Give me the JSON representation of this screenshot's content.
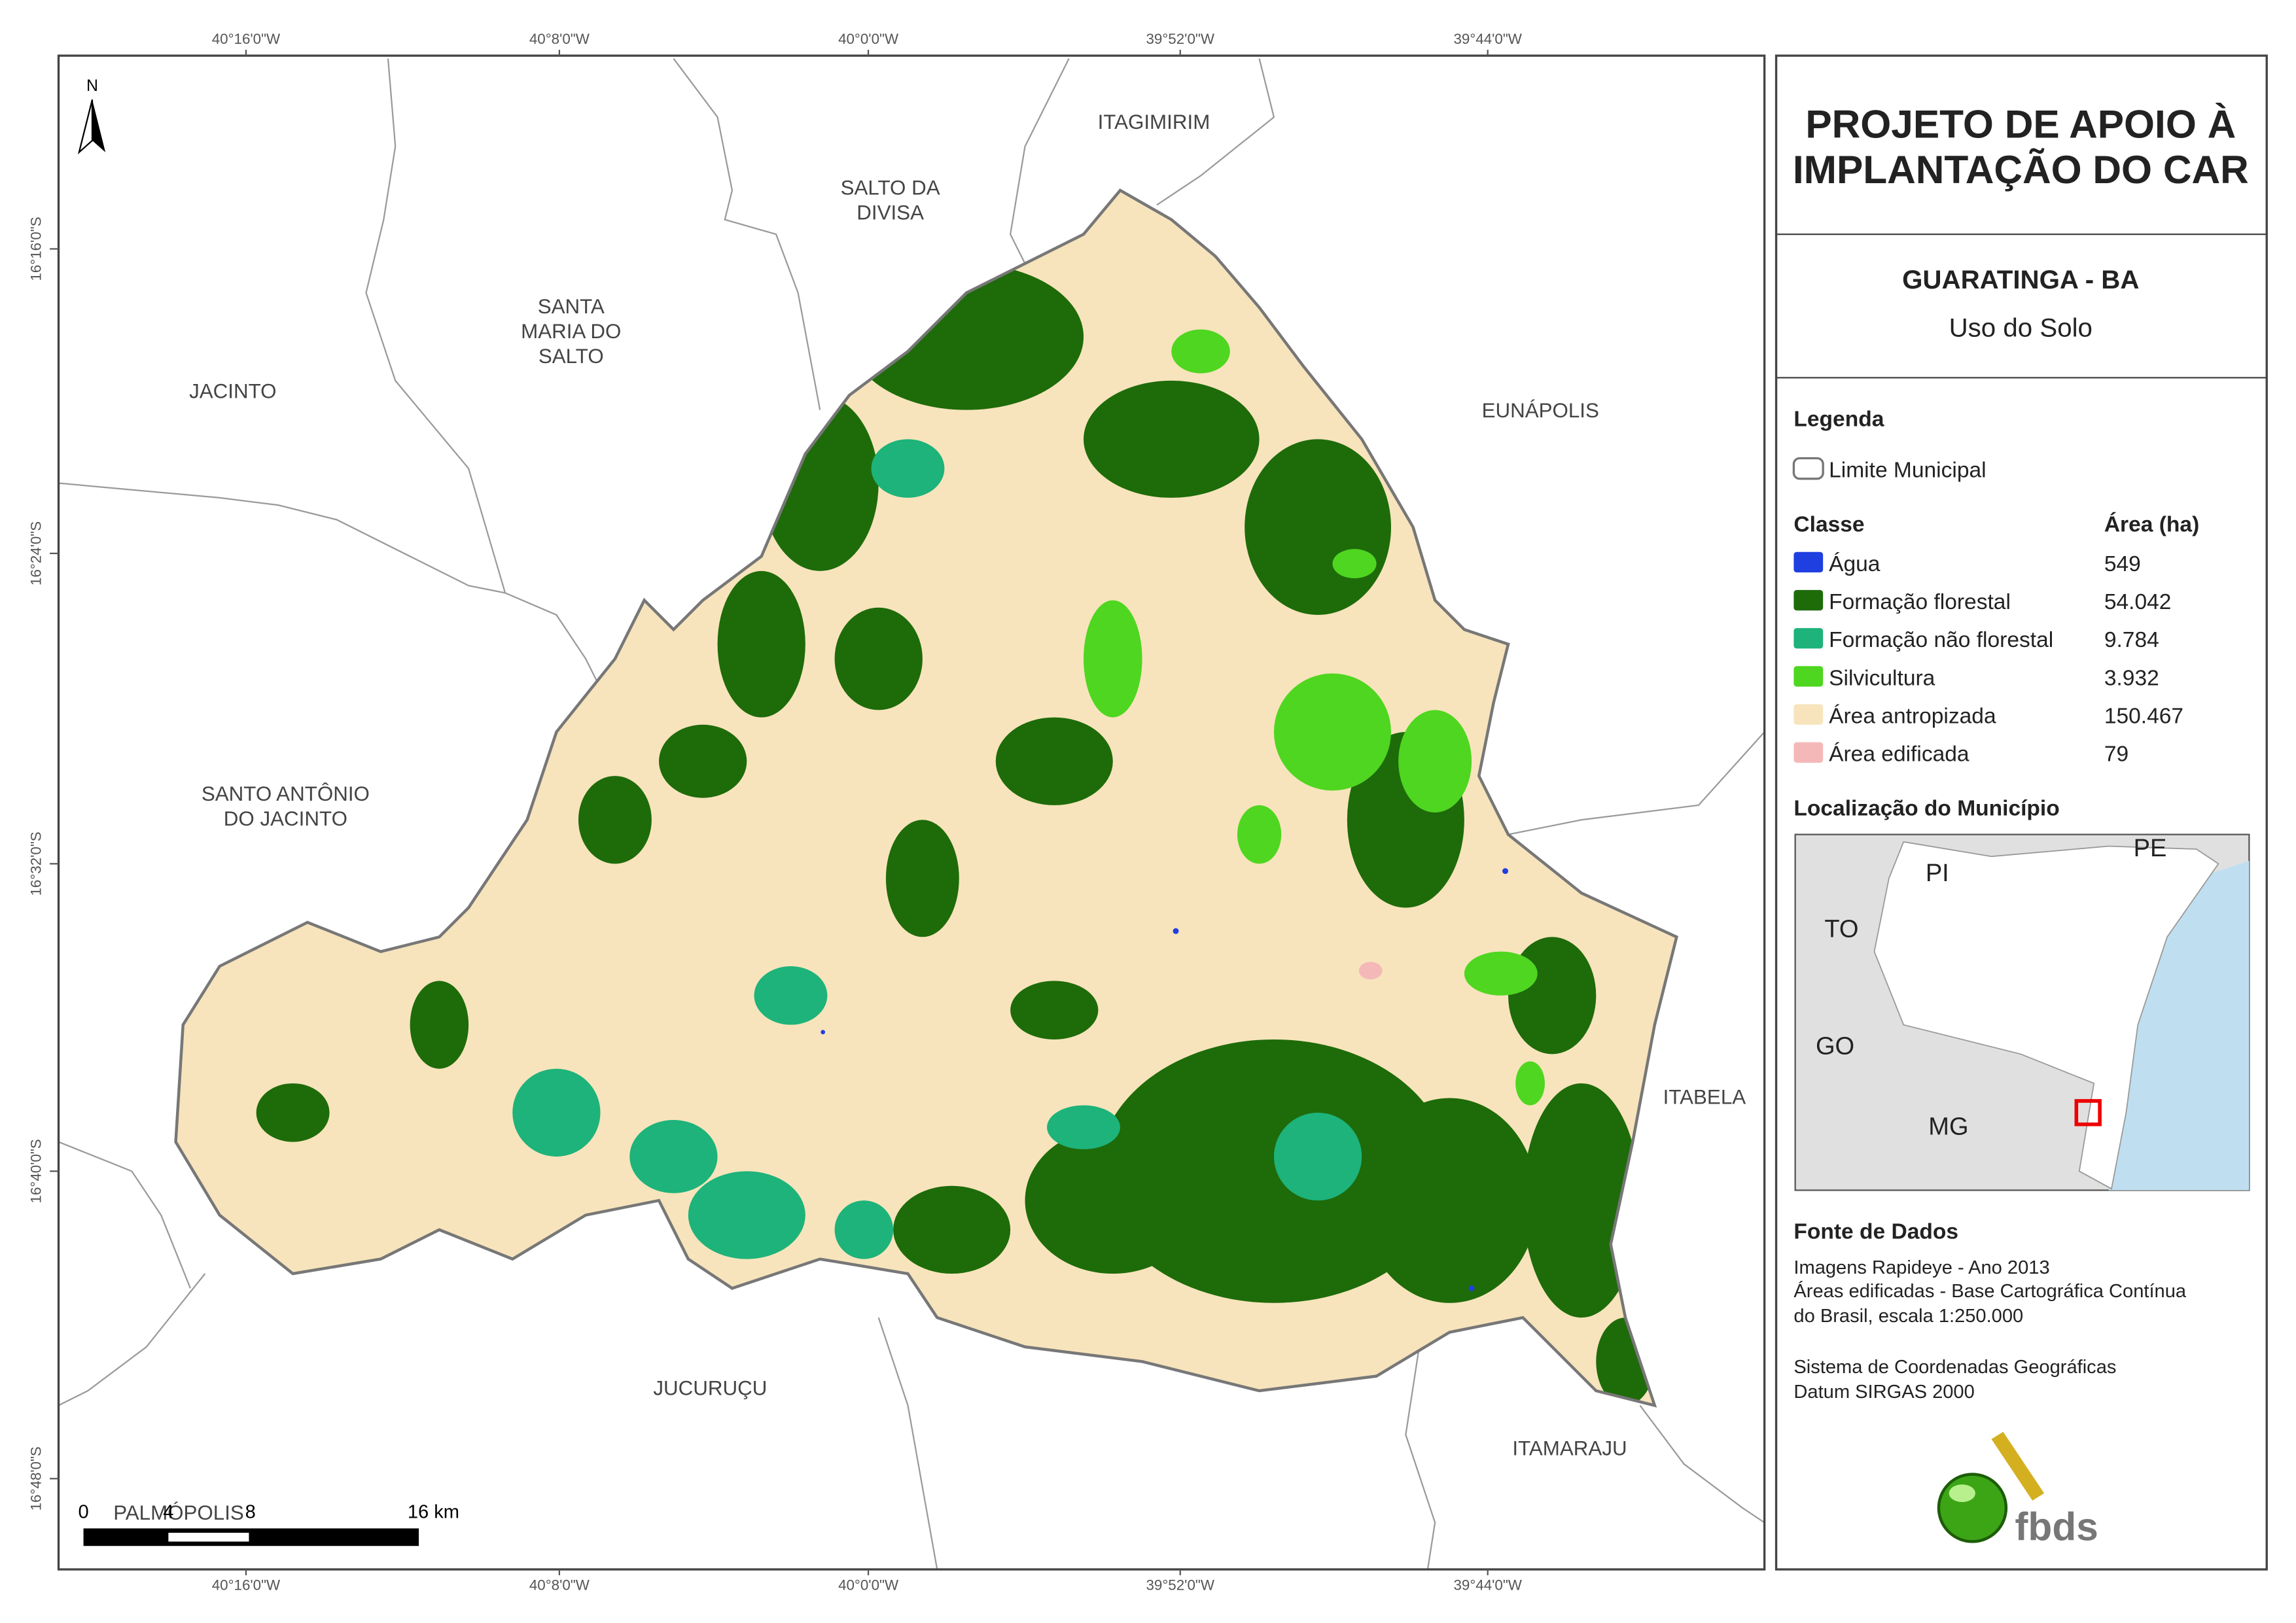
{
  "map": {
    "coordinates": {
      "top": [
        "40°16'0\"W",
        "40°8'0\"W",
        "40°0'0\"W",
        "39°52'0\"W",
        "39°44'0\"W"
      ],
      "bottom": [
        "40°16'0\"W",
        "40°8'0\"W",
        "40°0'0\"W",
        "39°52'0\"W",
        "39°44'0\"W"
      ],
      "left": [
        "16°16'0\"S",
        "16°24'0\"S",
        "16°32'0\"S",
        "16°40'0\"S",
        "16°48'0\"S"
      ]
    },
    "north": "N",
    "places": [
      [
        "ITAGIMIRIM"
      ],
      [
        "SALTO DA",
        "DIVISA"
      ],
      [
        "SANTA",
        "MARIA DO",
        "SALTO"
      ],
      [
        "JACINTO"
      ],
      [
        "EUNÁPOLIS"
      ],
      [
        "SANTO ANTÔNIO",
        "DO JACINTO"
      ],
      [
        "ITABELA"
      ],
      [
        "JUCURUÇU"
      ],
      [
        "ITAMARAJU"
      ],
      [
        "PALMÓPOLIS"
      ]
    ],
    "scale_bar": [
      "0",
      "4",
      "8",
      "16 km"
    ]
  },
  "panel": {
    "title": [
      "PROJETO DE APOIO À",
      "IMPLANTAÇÃO DO CAR"
    ],
    "municipality": "GUARATINGA - BA",
    "subtitle": "Uso do Solo",
    "legend": {
      "heading": "Legenda",
      "boundary": "Limite Municipal",
      "class_heading": "Classe",
      "area_heading": "Área (ha)",
      "classes": [
        {
          "name": "Água",
          "area": "549",
          "color": "#1f3fe0"
        },
        {
          "name": "Formação florestal",
          "area": "54.042",
          "color": "#1e6b0a"
        },
        {
          "name": "Formação não florestal",
          "area": "9.784",
          "color": "#1db37a"
        },
        {
          "name": "Silvicultura",
          "area": "3.932",
          "color": "#4fd620"
        },
        {
          "name": "Área antropizada",
          "area": "150.467",
          "color": "#f7e4bc"
        },
        {
          "name": "Área edificada",
          "area": "79",
          "color": "#f5b8b8"
        }
      ]
    },
    "location": {
      "heading": "Localização do Município",
      "labels": [
        "PI",
        "PE",
        "TO",
        "GO",
        "MG"
      ]
    },
    "sources": {
      "heading": "Fonte de Dados",
      "lines": [
        "Imagens Rapideye - Ano 2013",
        "Áreas edificadas - Base Cartográfica Contínua",
        "do Brasil, escala 1:250.000",
        "Sistema de Coordenadas Geográficas",
        "Datum SIRGAS 2000"
      ]
    },
    "logo": "fbds"
  }
}
